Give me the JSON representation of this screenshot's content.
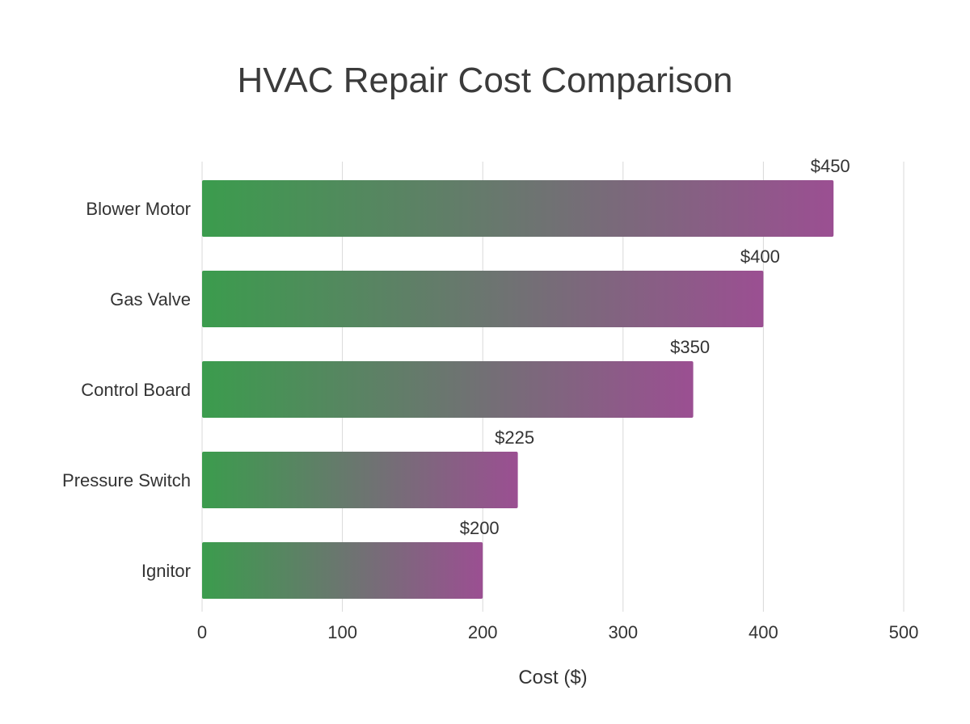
{
  "chart_data": {
    "type": "bar",
    "orientation": "horizontal",
    "title": "HVAC Repair Cost Comparison",
    "xlabel": "Cost ($)",
    "ylabel": "",
    "categories": [
      "Blower Motor",
      "Gas Valve",
      "Control Board",
      "Pressure Switch",
      "Ignitor"
    ],
    "values": [
      450,
      400,
      350,
      225,
      200
    ],
    "value_labels": [
      "$450",
      "$400",
      "$350",
      "$225",
      "$200"
    ],
    "xlim": [
      0,
      500
    ],
    "xticks": [
      0,
      100,
      200,
      300,
      400,
      500
    ],
    "tick_labels": [
      "0",
      "100",
      "200",
      "300",
      "400",
      "500"
    ],
    "grid": true,
    "legend": "none",
    "bar_gradient": {
      "start_color": "#3b9c4d",
      "end_color": "#9b4f92"
    }
  }
}
